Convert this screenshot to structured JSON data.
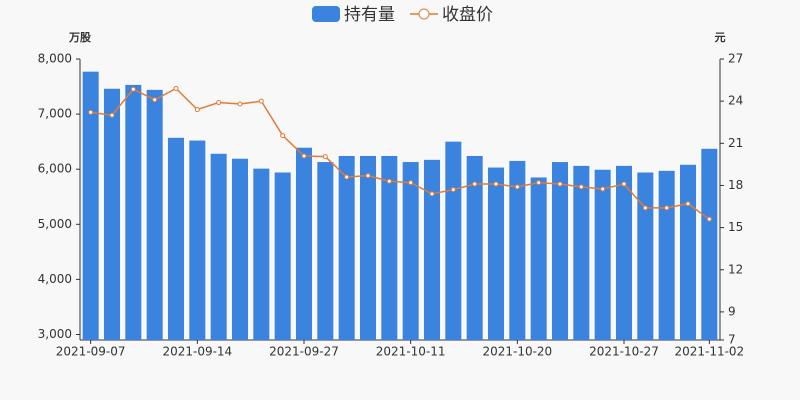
{
  "chart_data": {
    "type": "bar-line",
    "y_axis_label": "万股",
    "y2_axis_label": "元",
    "categories": [
      "2021-09-07",
      null,
      null,
      null,
      null,
      "2021-09-14",
      null,
      null,
      null,
      null,
      "2021-09-27",
      null,
      null,
      null,
      null,
      "2021-10-11",
      null,
      null,
      null,
      null,
      "2021-10-20",
      null,
      null,
      null,
      null,
      "2021-10-27",
      null,
      null,
      null,
      "2021-11-02"
    ],
    "series": [
      {
        "name": "持有量",
        "type": "bar",
        "color": "#3a84e0",
        "values": [
          7770,
          7460,
          7530,
          7440,
          6570,
          6520,
          6280,
          6190,
          6010,
          5940,
          6390,
          6130,
          6240,
          6240,
          6240,
          6130,
          6170,
          6500,
          6240,
          6030,
          6150,
          5850,
          6130,
          6060,
          5990,
          6060,
          5940,
          5970,
          6080,
          6370
        ]
      },
      {
        "name": "收盘价",
        "type": "line",
        "axis": "y2",
        "color": "#e07b39",
        "values": [
          23.2,
          23.0,
          24.85,
          24.1,
          24.9,
          23.4,
          23.9,
          23.8,
          24.0,
          21.55,
          20.1,
          20.05,
          18.6,
          18.7,
          18.3,
          18.2,
          17.4,
          17.7,
          18.1,
          18.1,
          17.9,
          18.2,
          18.1,
          17.9,
          17.75,
          18.1,
          16.4,
          16.4,
          16.7,
          15.6
        ]
      }
    ],
    "ylim": [
      2900,
      8000
    ],
    "yticks": [
      {
        "value": 3000,
        "label": "3,000"
      },
      {
        "value": 4000,
        "label": "4,000"
      },
      {
        "value": 5000,
        "label": "5,000"
      },
      {
        "value": 6000,
        "label": "6,000"
      },
      {
        "value": 7000,
        "label": "7,000"
      },
      {
        "value": 8000,
        "label": "8,000"
      }
    ],
    "y2lim": [
      7,
      27
    ],
    "y2ticks": [
      7,
      9,
      12,
      15,
      18,
      21,
      24,
      27
    ],
    "grid": false
  }
}
